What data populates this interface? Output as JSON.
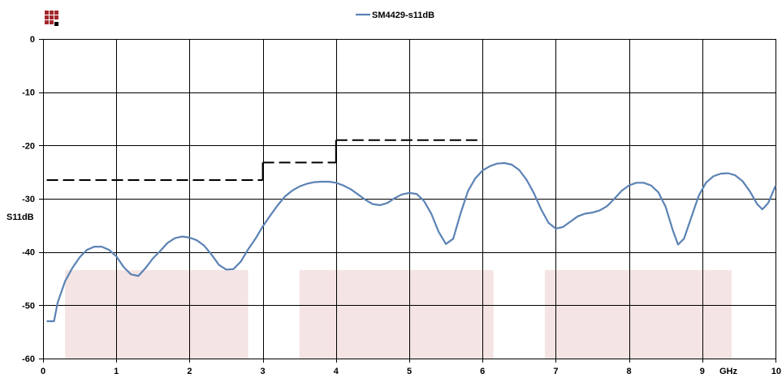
{
  "chart_data": {
    "type": "line",
    "legend": {
      "placement": "top-center"
    },
    "xlabel": "GHz",
    "ylabel": "S11dB",
    "xlim": [
      0,
      10
    ],
    "ylim": [
      -60,
      0
    ],
    "x_ticks": [
      "0",
      "1",
      "2",
      "3",
      "4",
      "5",
      "6",
      "7",
      "8",
      "9",
      "10"
    ],
    "y_ticks": [
      "0",
      "-10",
      "-20",
      "-30",
      "-40",
      "-50",
      "-60"
    ],
    "grid": true,
    "series": [
      {
        "name": "SM4429-s11dB",
        "color": "#5b82b5",
        "points": [
          [
            0.05,
            -53.0
          ],
          [
            0.15,
            -53.0
          ],
          [
            0.2,
            -49.5
          ],
          [
            0.3,
            -45.5
          ],
          [
            0.4,
            -43.0
          ],
          [
            0.5,
            -41.0
          ],
          [
            0.6,
            -39.6
          ],
          [
            0.7,
            -39.0
          ],
          [
            0.8,
            -39.0
          ],
          [
            0.9,
            -39.6
          ],
          [
            1.0,
            -40.8
          ],
          [
            1.1,
            -42.8
          ],
          [
            1.2,
            -44.2
          ],
          [
            1.3,
            -44.5
          ],
          [
            1.4,
            -43.0
          ],
          [
            1.5,
            -41.2
          ],
          [
            1.6,
            -39.8
          ],
          [
            1.7,
            -38.3
          ],
          [
            1.8,
            -37.4
          ],
          [
            1.9,
            -37.1
          ],
          [
            2.0,
            -37.3
          ],
          [
            2.1,
            -37.8
          ],
          [
            2.2,
            -38.8
          ],
          [
            2.3,
            -40.5
          ],
          [
            2.4,
            -42.4
          ],
          [
            2.5,
            -43.3
          ],
          [
            2.6,
            -43.2
          ],
          [
            2.7,
            -41.8
          ],
          [
            2.8,
            -39.5
          ],
          [
            2.9,
            -37.5
          ],
          [
            3.0,
            -35.2
          ],
          [
            3.1,
            -33.2
          ],
          [
            3.2,
            -31.3
          ],
          [
            3.3,
            -29.6
          ],
          [
            3.4,
            -28.5
          ],
          [
            3.5,
            -27.7
          ],
          [
            3.6,
            -27.2
          ],
          [
            3.7,
            -26.9
          ],
          [
            3.8,
            -26.8
          ],
          [
            3.9,
            -26.8
          ],
          [
            4.0,
            -27.0
          ],
          [
            4.1,
            -27.5
          ],
          [
            4.2,
            -28.2
          ],
          [
            4.3,
            -29.2
          ],
          [
            4.4,
            -30.2
          ],
          [
            4.5,
            -31.0
          ],
          [
            4.6,
            -31.2
          ],
          [
            4.7,
            -30.8
          ],
          [
            4.8,
            -29.9
          ],
          [
            4.9,
            -29.2
          ],
          [
            5.0,
            -28.9
          ],
          [
            5.1,
            -29.1
          ],
          [
            5.2,
            -30.4
          ],
          [
            5.3,
            -32.8
          ],
          [
            5.4,
            -36.2
          ],
          [
            5.5,
            -38.5
          ],
          [
            5.6,
            -37.5
          ],
          [
            5.7,
            -32.8
          ],
          [
            5.8,
            -28.6
          ],
          [
            5.9,
            -26.2
          ],
          [
            6.0,
            -24.7
          ],
          [
            6.1,
            -23.9
          ],
          [
            6.2,
            -23.4
          ],
          [
            6.3,
            -23.3
          ],
          [
            6.4,
            -23.6
          ],
          [
            6.5,
            -24.6
          ],
          [
            6.6,
            -26.4
          ],
          [
            6.7,
            -28.9
          ],
          [
            6.8,
            -32.0
          ],
          [
            6.9,
            -34.5
          ],
          [
            7.0,
            -35.6
          ],
          [
            7.1,
            -35.3
          ],
          [
            7.2,
            -34.3
          ],
          [
            7.3,
            -33.3
          ],
          [
            7.4,
            -32.8
          ],
          [
            7.5,
            -32.6
          ],
          [
            7.6,
            -32.2
          ],
          [
            7.7,
            -31.4
          ],
          [
            7.8,
            -30.0
          ],
          [
            7.9,
            -28.5
          ],
          [
            8.0,
            -27.5
          ],
          [
            8.1,
            -27.0
          ],
          [
            8.2,
            -27.0
          ],
          [
            8.3,
            -27.5
          ],
          [
            8.4,
            -28.8
          ],
          [
            8.5,
            -31.5
          ],
          [
            8.6,
            -36.0
          ],
          [
            8.67,
            -38.6
          ],
          [
            8.75,
            -37.5
          ],
          [
            8.85,
            -33.5
          ],
          [
            8.95,
            -29.5
          ],
          [
            9.05,
            -27.0
          ],
          [
            9.15,
            -25.8
          ],
          [
            9.25,
            -25.3
          ],
          [
            9.35,
            -25.2
          ],
          [
            9.45,
            -25.6
          ],
          [
            9.55,
            -26.7
          ],
          [
            9.65,
            -28.6
          ],
          [
            9.75,
            -31.0
          ],
          [
            9.82,
            -32.0
          ],
          [
            9.9,
            -30.8
          ],
          [
            10.0,
            -27.6
          ]
        ]
      }
    ],
    "limit_line": {
      "style": "dashed",
      "color": "#000000",
      "segments": [
        {
          "x": [
            0.05,
            3.0
          ],
          "y": -26.5
        },
        {
          "x": [
            3.0,
            4.0
          ],
          "y": -23.2
        },
        {
          "x": [
            4.0,
            6.0
          ],
          "y": -19.0
        }
      ]
    },
    "bands": [
      {
        "x": [
          0.3,
          2.8
        ],
        "y": [
          -60,
          -43.4
        ],
        "color": "#f5e4e4"
      },
      {
        "x": [
          3.5,
          6.15
        ],
        "y": [
          -60,
          -43.4
        ],
        "color": "#f5e4e4"
      },
      {
        "x": [
          6.85,
          9.4
        ],
        "y": [
          -60,
          -43.4
        ],
        "color": "#f5e4e4"
      }
    ]
  },
  "logo": {
    "name": "grid-logo-icon",
    "color": "#a2282c",
    "accent": "#000000"
  }
}
